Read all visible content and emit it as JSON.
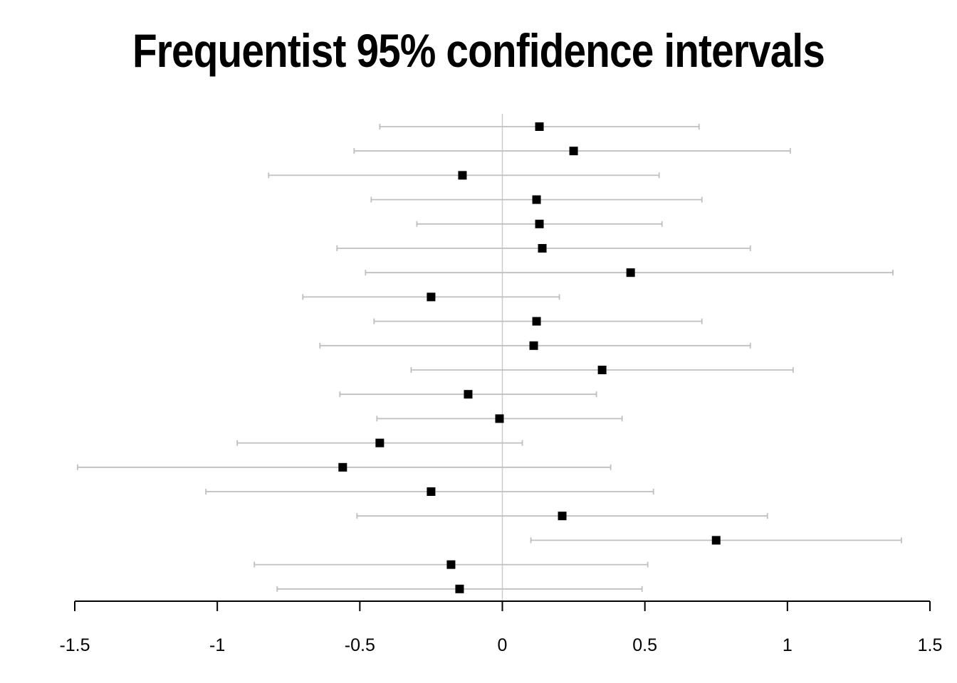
{
  "chart_data": {
    "type": "scatter",
    "title": "Frequentist 95% confidence intervals",
    "xlabel": "",
    "ylabel": "",
    "xlim": [
      -1.5,
      1.5
    ],
    "x_ticks": [
      -1.5,
      -1,
      -0.5,
      0,
      0.5,
      1,
      1.5
    ],
    "x_tick_labels": [
      "-1.5",
      "-1",
      "-0.5",
      "0",
      "0.5",
      "1",
      "1.5"
    ],
    "reference_line_x": 0,
    "grid": false,
    "colors": {
      "point": "#000000",
      "interval": "#bfbfbf",
      "reference": "#cccccc",
      "axis": "#000000"
    },
    "intervals": [
      {
        "estimate": 0.13,
        "lower": -0.43,
        "upper": 0.69
      },
      {
        "estimate": 0.25,
        "lower": -0.52,
        "upper": 1.01
      },
      {
        "estimate": -0.14,
        "lower": -0.82,
        "upper": 0.55
      },
      {
        "estimate": 0.12,
        "lower": -0.46,
        "upper": 0.7
      },
      {
        "estimate": 0.13,
        "lower": -0.3,
        "upper": 0.56
      },
      {
        "estimate": 0.14,
        "lower": -0.58,
        "upper": 0.87
      },
      {
        "estimate": 0.45,
        "lower": -0.48,
        "upper": 1.37
      },
      {
        "estimate": -0.25,
        "lower": -0.7,
        "upper": 0.2
      },
      {
        "estimate": 0.12,
        "lower": -0.45,
        "upper": 0.7
      },
      {
        "estimate": 0.11,
        "lower": -0.64,
        "upper": 0.87
      },
      {
        "estimate": 0.35,
        "lower": -0.32,
        "upper": 1.02
      },
      {
        "estimate": -0.12,
        "lower": -0.57,
        "upper": 0.33
      },
      {
        "estimate": -0.01,
        "lower": -0.44,
        "upper": 0.42
      },
      {
        "estimate": -0.43,
        "lower": -0.93,
        "upper": 0.07
      },
      {
        "estimate": -0.56,
        "lower": -1.49,
        "upper": 0.38
      },
      {
        "estimate": -0.25,
        "lower": -1.04,
        "upper": 0.53
      },
      {
        "estimate": 0.21,
        "lower": -0.51,
        "upper": 0.93
      },
      {
        "estimate": 0.75,
        "lower": 0.1,
        "upper": 1.4
      },
      {
        "estimate": -0.18,
        "lower": -0.87,
        "upper": 0.51
      },
      {
        "estimate": -0.15,
        "lower": -0.79,
        "upper": 0.49
      }
    ]
  }
}
